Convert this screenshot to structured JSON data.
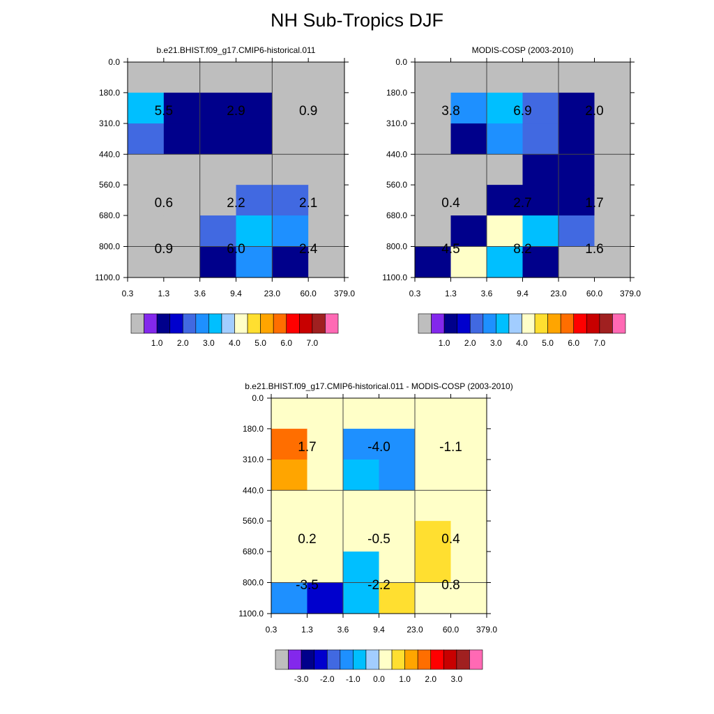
{
  "figure_title": "NH Sub-Tropics DJF",
  "chart_data": [
    {
      "type": "heatmap",
      "title": "b.e21.BHIST.f09_g17.CMIP6-historical.011",
      "x_tick_labels": [
        "0.3",
        "1.3",
        "3.6",
        "9.4",
        "23.0",
        "60.0",
        "379.0"
      ],
      "y_tick_labels": [
        "0.0",
        "180.0",
        "310.0",
        "440.0",
        "560.0",
        "680.0",
        "800.0",
        "1100.0"
      ],
      "cells": [
        [
          0.0,
          0.0,
          0.0,
          0.0,
          0.0,
          0.0
        ],
        [
          2.5,
          0.5,
          0.5,
          0.5,
          0.0,
          0.0
        ],
        [
          1.5,
          0.5,
          0.5,
          0.5,
          0.0,
          0.0
        ],
        [
          0.0,
          0.0,
          0.0,
          0.0,
          0.0,
          0.0
        ],
        [
          0.0,
          0.0,
          0.0,
          1.5,
          1.5,
          0.0
        ],
        [
          0.0,
          0.0,
          1.5,
          2.5,
          2.0,
          0.0
        ],
        [
          0.0,
          0.0,
          0.5,
          2.0,
          0.5,
          0.0
        ]
      ],
      "box_values": [
        [
          "5.5",
          "2.9",
          "0.9"
        ],
        [
          "0.6",
          "2.2",
          "2.1"
        ],
        [
          "0.9",
          "6.0",
          "2.4"
        ]
      ],
      "colorbar_labels": [
        "1.0",
        "2.0",
        "3.0",
        "4.0",
        "5.0",
        "6.0",
        "7.0"
      ]
    },
    {
      "type": "heatmap",
      "title": "MODIS-COSP (2003-2010)",
      "x_tick_labels": [
        "0.3",
        "1.3",
        "3.6",
        "9.4",
        "23.0",
        "60.0",
        "379.0"
      ],
      "y_tick_labels": [
        "0.0",
        "180.0",
        "310.0",
        "440.0",
        "560.0",
        "680.0",
        "800.0",
        "1100.0"
      ],
      "cells": [
        [
          0.0,
          0.0,
          0.0,
          0.0,
          0.0,
          0.0
        ],
        [
          0.0,
          2.0,
          2.5,
          1.5,
          0.5,
          0.0
        ],
        [
          0.0,
          0.5,
          2.0,
          1.5,
          0.5,
          0.0
        ],
        [
          0.0,
          0.0,
          0.0,
          0.5,
          0.5,
          0.0
        ],
        [
          0.0,
          0.0,
          0.5,
          0.5,
          0.5,
          0.0
        ],
        [
          0.0,
          0.5,
          3.5,
          2.5,
          1.5,
          0.0
        ],
        [
          0.5,
          3.5,
          2.5,
          0.5,
          0.0,
          0.0
        ]
      ],
      "box_values": [
        [
          "3.8",
          "6.9",
          "2.0"
        ],
        [
          "0.4",
          "2.7",
          "1.7"
        ],
        [
          "4.5",
          "8.2",
          "1.6"
        ]
      ],
      "colorbar_labels": [
        "1.0",
        "2.0",
        "3.0",
        "4.0",
        "5.0",
        "6.0",
        "7.0"
      ]
    },
    {
      "type": "heatmap",
      "title": "b.e21.BHIST.f09_g17.CMIP6-historical.011 - MODIS-COSP (2003-2010)",
      "x_tick_labels": [
        "0.3",
        "1.3",
        "3.6",
        "9.4",
        "23.0",
        "60.0",
        "379.0"
      ],
      "y_tick_labels": [
        "0.0",
        "180.0",
        "310.0",
        "440.0",
        "560.0",
        "680.0",
        "800.0",
        "1100.0"
      ],
      "cells": [
        [
          0.25,
          0.0,
          0.0,
          0.0,
          0.0,
          0.0
        ],
        [
          1.75,
          0.0,
          -1.25,
          -1.25,
          0.0,
          0.0
        ],
        [
          1.25,
          0.0,
          -0.75,
          -1.25,
          0.0,
          0.0
        ],
        [
          0.25,
          0.0,
          0.0,
          0.0,
          0.0,
          0.0
        ],
        [
          0.25,
          0.0,
          0.0,
          0.25,
          0.75,
          0.0
        ],
        [
          0.0,
          0.0,
          -0.75,
          0.0,
          0.75,
          0.0
        ],
        [
          -1.25,
          -2.5,
          -0.75,
          0.75,
          0.25,
          0.0
        ]
      ],
      "box_values": [
        [
          "1.7",
          "-4.0",
          "-1.1"
        ],
        [
          "0.2",
          "-0.5",
          "0.4"
        ],
        [
          "-3.5",
          "-2.2",
          "0.8"
        ]
      ],
      "colorbar_labels": [
        "-3.0",
        "-2.0",
        "-1.0",
        "0.0",
        "1.0",
        "2.0",
        "3.0"
      ]
    }
  ],
  "colors": {
    "absolute_colorbar": [
      "#bebebe",
      "#8328ec",
      "#00008b",
      "#0000cd",
      "#4169e1",
      "#1e90ff",
      "#00bfff",
      "#a2cdff",
      "#ffffc8",
      "#ffdf30",
      "#ffa500",
      "#ff6e00",
      "#ff0000",
      "#c80000",
      "#a02020",
      "#ff69b4"
    ],
    "difference_colorbar": [
      "#bebebe",
      "#8328ec",
      "#00008b",
      "#0000cd",
      "#4169e1",
      "#1e90ff",
      "#00bfff",
      "#a2cdff",
      "#ffffc8",
      "#ffdf30",
      "#ffa500",
      "#ff6e00",
      "#ff0000",
      "#c80000",
      "#a02020",
      "#ff69b4"
    ]
  }
}
